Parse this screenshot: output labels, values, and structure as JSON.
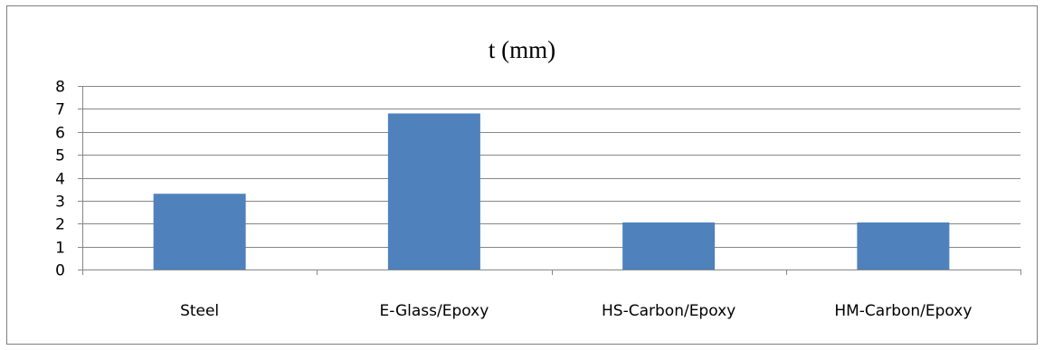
{
  "chart_data": {
    "type": "bar",
    "title": "t (mm)",
    "xlabel": "",
    "ylabel": "",
    "categories": [
      "Steel",
      "E-Glass/Epoxy",
      "HS-Carbon/Epoxy",
      "HM-Carbon/Epoxy"
    ],
    "values": [
      3.3,
      6.8,
      2.05,
      2.05
    ],
    "ylim": [
      0,
      8
    ],
    "yticks": [
      0,
      1,
      2,
      3,
      4,
      5,
      6,
      7,
      8
    ],
    "grid": true,
    "legend": "none",
    "bar_color": "#4f81bd",
    "grid_color": "#878787",
    "axis_color": "#878787"
  }
}
